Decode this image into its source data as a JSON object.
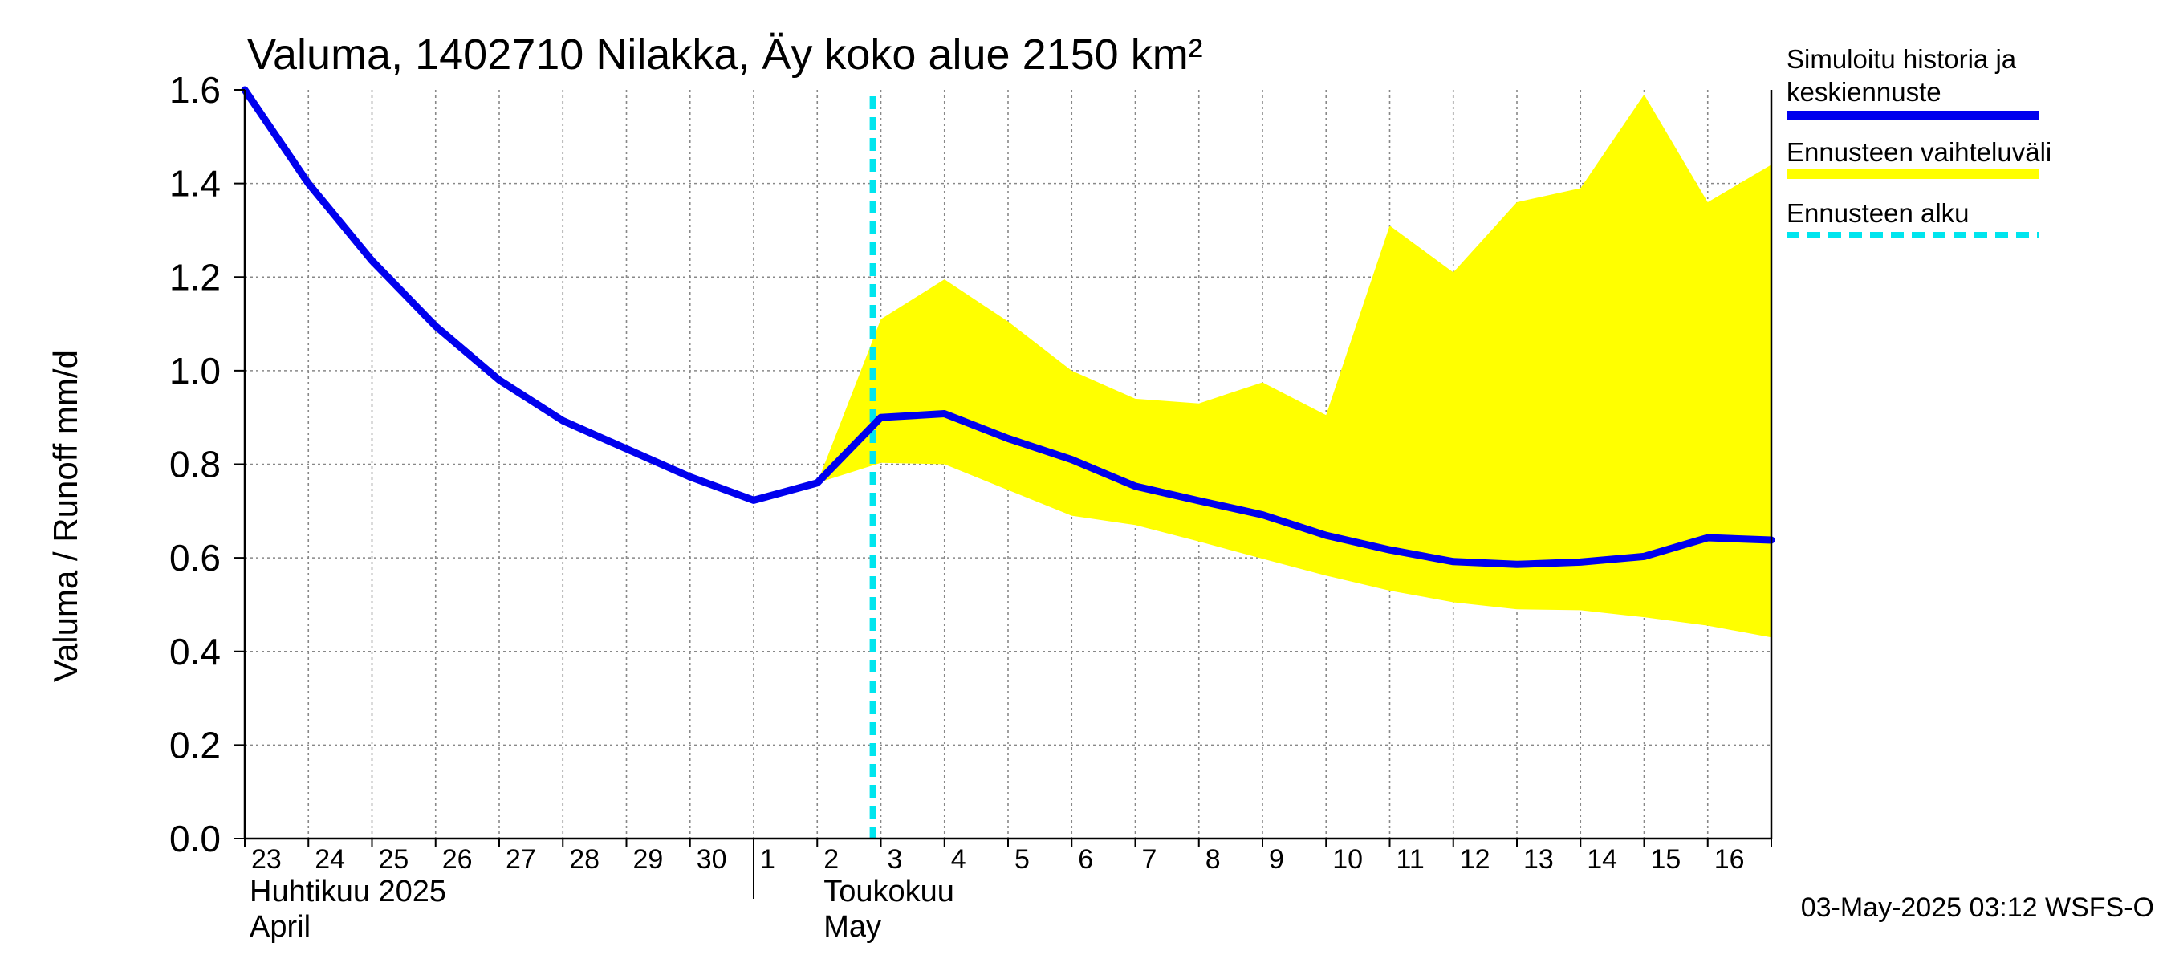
{
  "chart_data": {
    "type": "line",
    "title": "Valuma, 1402710 Nilakka, Äy koko alue 2150 km²",
    "ylabel": "Valuma / Runoff    mm/d",
    "ylim": [
      0,
      1.6
    ],
    "yticks": [
      "0.0",
      "0.2",
      "0.4",
      "0.6",
      "0.8",
      "1.0",
      "1.2",
      "1.4",
      "1.6"
    ],
    "x": [
      "2025-04-23",
      "2025-04-24",
      "2025-04-25",
      "2025-04-26",
      "2025-04-27",
      "2025-04-28",
      "2025-04-29",
      "2025-04-30",
      "2025-05-01",
      "2025-05-02",
      "2025-05-03",
      "2025-05-04",
      "2025-05-05",
      "2025-05-06",
      "2025-05-07",
      "2025-05-08",
      "2025-05-09",
      "2025-05-10",
      "2025-05-11",
      "2025-05-12",
      "2025-05-13",
      "2025-05-14",
      "2025-05-15",
      "2025-05-16",
      "2025-05-17"
    ],
    "xlim": [
      "2025-04-23",
      "2025-05-17"
    ],
    "day_labels": [
      "23",
      "24",
      "25",
      "26",
      "27",
      "28",
      "29",
      "30",
      "1",
      "2",
      "3",
      "4",
      "5",
      "6",
      "7",
      "8",
      "9",
      "10",
      "11",
      "12",
      "13",
      "14",
      "15",
      "16"
    ],
    "month_labels": [
      {
        "line1": "Huhtikuu  2025",
        "line2": "April"
      },
      {
        "line1": "Toukokuu",
        "line2": "May"
      }
    ],
    "series": [
      {
        "name": "Simuloitu historia ja keskiennuste",
        "color": "#0000ee",
        "style": "solid",
        "values": [
          1.6,
          1.4,
          1.235,
          1.095,
          0.98,
          0.893,
          0.833,
          0.773,
          0.723,
          0.76,
          0.9,
          0.908,
          0.855,
          0.81,
          0.753,
          0.722,
          0.692,
          0.648,
          0.617,
          0.592,
          0.586,
          0.591,
          0.603,
          0.643,
          0.638
        ]
      },
      {
        "name": "Ennusteen vaihteluväli",
        "type": "area",
        "color": "#ffff00",
        "x_start": "2025-05-02",
        "lower": [
          0.76,
          0.803,
          0.8,
          0.745,
          0.69,
          0.67,
          0.635,
          0.598,
          0.562,
          0.53,
          0.505,
          0.49,
          0.488,
          0.473,
          0.455,
          0.43
        ],
        "upper": [
          0.76,
          1.11,
          1.195,
          1.105,
          1.0,
          0.94,
          0.93,
          0.975,
          0.905,
          1.31,
          1.21,
          1.36,
          1.39,
          1.59,
          1.36,
          1.44
        ]
      },
      {
        "name": "Ennusteen alku",
        "color": "#00e5ee",
        "style": "dashed",
        "x": "2025-05-02T21:00"
      }
    ],
    "legend": [
      {
        "line1": "Simuloitu historia ja",
        "line2": "keskiennuste",
        "color": "#0000ee",
        "style": "solid"
      },
      {
        "line1": "Ennusteen vaihteluväli",
        "line2": "",
        "color": "#ffff00",
        "style": "solid"
      },
      {
        "line1": "Ennusteen alku",
        "line2": "",
        "color": "#00e5ee",
        "style": "dashed"
      }
    ],
    "legend_position": "right",
    "grid": true,
    "footer": "03-May-2025 03:12 WSFS-O"
  }
}
